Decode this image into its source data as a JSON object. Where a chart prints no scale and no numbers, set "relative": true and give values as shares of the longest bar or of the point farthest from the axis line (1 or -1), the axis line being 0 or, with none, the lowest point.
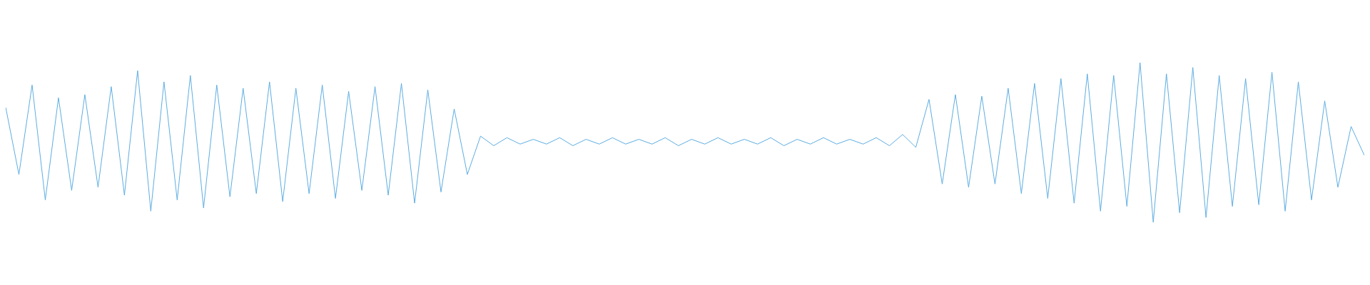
{
  "chart_data": {
    "type": "line",
    "relative": true,
    "color": "#5dade2",
    "categories": [
      null,
      null,
      null,
      null,
      null,
      null,
      null,
      null,
      null,
      null,
      null,
      null,
      null,
      null,
      null,
      null,
      null,
      null,
      null,
      null,
      null,
      null,
      null,
      null,
      null,
      null,
      null,
      null,
      null,
      null,
      null,
      null,
      null,
      null,
      null,
      null,
      null,
      null,
      null,
      null,
      null,
      null,
      null,
      null,
      null,
      null,
      null,
      null,
      null,
      null,
      null,
      null,
      null,
      null,
      null,
      null,
      null,
      null,
      null,
      null,
      null,
      null,
      null,
      null,
      null,
      null,
      null,
      null,
      null,
      null,
      null,
      null,
      null,
      null,
      null,
      null,
      null,
      null,
      null,
      null,
      null,
      null,
      null,
      null,
      null,
      null,
      null,
      null,
      null,
      null,
      null,
      null,
      null,
      null,
      null,
      null,
      null,
      null,
      null,
      null,
      null,
      null,
      null,
      null
    ],
    "values": [
      0.72,
      0.3,
      0.86,
      0.14,
      0.78,
      0.2,
      0.8,
      0.22,
      0.85,
      0.17,
      0.95,
      0.07,
      0.88,
      0.14,
      0.92,
      0.09,
      0.86,
      0.16,
      0.84,
      0.18,
      0.88,
      0.13,
      0.84,
      0.18,
      0.86,
      0.15,
      0.82,
      0.2,
      0.85,
      0.17,
      0.87,
      0.12,
      0.83,
      0.19,
      0.71,
      0.3,
      0.54,
      0.48,
      0.53,
      0.49,
      0.52,
      0.49,
      0.53,
      0.48,
      0.52,
      0.49,
      0.53,
      0.49,
      0.52,
      0.49,
      0.53,
      0.48,
      0.52,
      0.49,
      0.53,
      0.49,
      0.52,
      0.49,
      0.53,
      0.48,
      0.52,
      0.49,
      0.53,
      0.49,
      0.52,
      0.49,
      0.53,
      0.48,
      0.55,
      0.47,
      0.77,
      0.24,
      0.8,
      0.22,
      0.79,
      0.24,
      0.84,
      0.18,
      0.87,
      0.15,
      0.9,
      0.12,
      0.93,
      0.07,
      0.92,
      0.1,
      1.0,
      0.0,
      0.93,
      0.06,
      0.97,
      0.03,
      0.92,
      0.1,
      0.9,
      0.11,
      0.94,
      0.07,
      0.88,
      0.14,
      0.76,
      0.22,
      0.6,
      0.42
    ]
  }
}
